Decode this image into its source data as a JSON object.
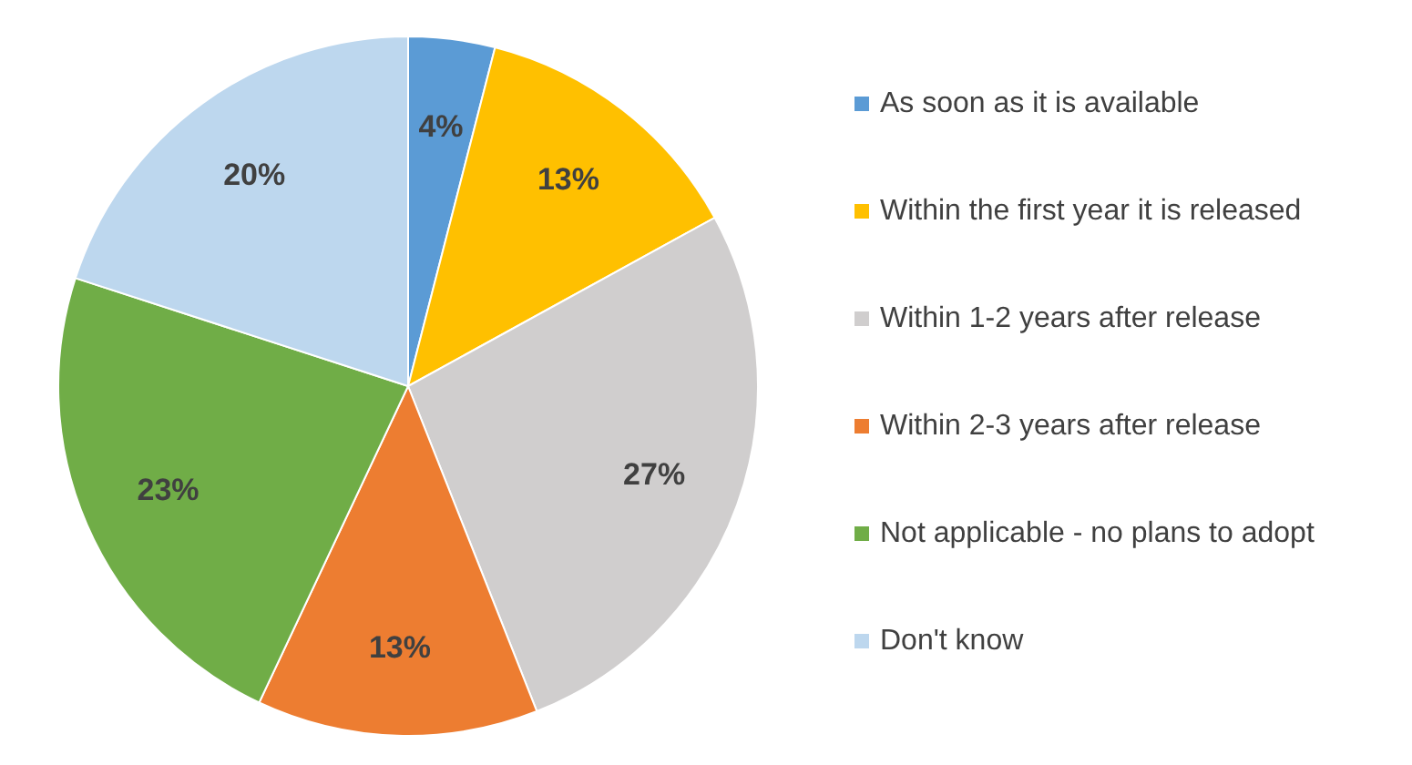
{
  "chart_data": {
    "type": "pie",
    "categories": [
      "As soon as it is available",
      "Within the first year it is released",
      "Within 1-2 years after release",
      "Within 2-3 years after release",
      "Not applicable - no plans to adopt",
      "Don't know"
    ],
    "values": [
      4,
      13,
      27,
      13,
      23,
      20
    ],
    "colors": [
      "#5b9bd5",
      "#ffc000",
      "#d0cece",
      "#ed7d31",
      "#70ad47",
      "#bdd7ee"
    ],
    "value_labels": [
      "4%",
      "13%",
      "27%",
      "13%",
      "23%",
      "20%"
    ],
    "legend": "right"
  }
}
